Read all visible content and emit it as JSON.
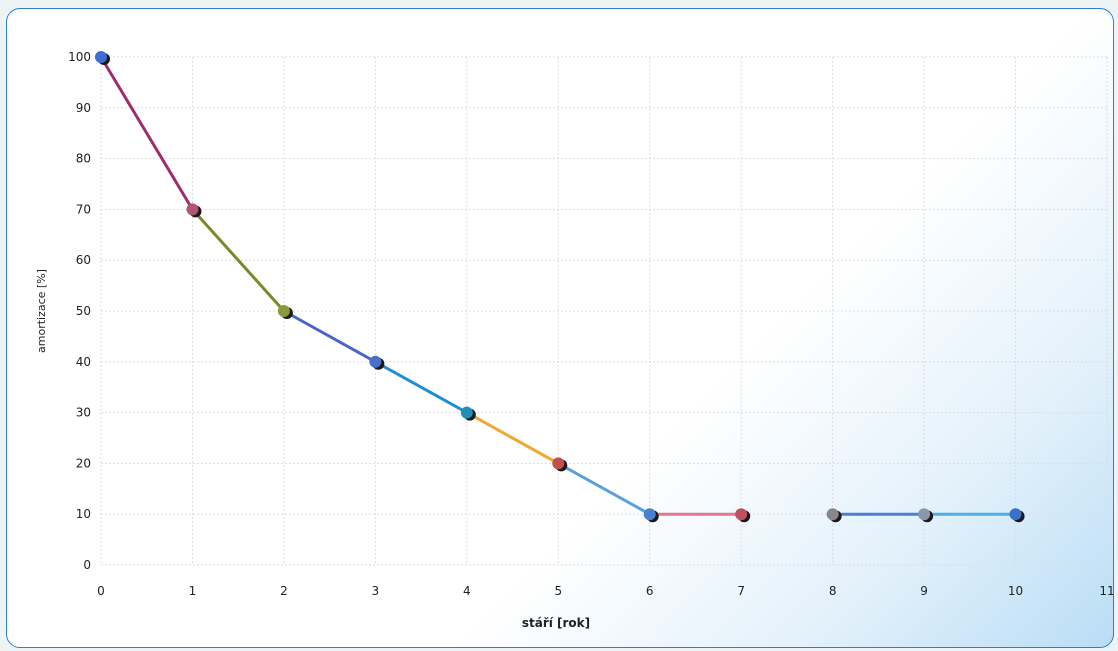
{
  "chart_data": {
    "type": "line",
    "xlabel": "stáří [rok]",
    "ylabel": "amortizace [%]",
    "xlim": [
      0,
      11
    ],
    "ylim": [
      0,
      100
    ],
    "x_ticks": [
      0,
      1,
      2,
      3,
      4,
      5,
      6,
      7,
      8,
      9,
      10,
      11
    ],
    "y_ticks": [
      0,
      10,
      20,
      30,
      40,
      50,
      60,
      70,
      80,
      90,
      100
    ],
    "grid": true,
    "points": [
      {
        "x": 0,
        "y": 100
      },
      {
        "x": 1,
        "y": 70
      },
      {
        "x": 2,
        "y": 50
      },
      {
        "x": 3,
        "y": 40
      },
      {
        "x": 4,
        "y": 30
      },
      {
        "x": 5,
        "y": 20
      },
      {
        "x": 6,
        "y": 10
      },
      {
        "x": 7,
        "y": 10
      },
      {
        "x": 8,
        "y": 10
      },
      {
        "x": 9,
        "y": 10
      },
      {
        "x": 10,
        "y": 10
      }
    ],
    "segments": [
      {
        "from": 0,
        "to": 1,
        "color": "#9b2d6e"
      },
      {
        "from": 1,
        "to": 2,
        "color": "#7a8a2a"
      },
      {
        "from": 2,
        "to": 3,
        "color": "#4a66c8"
      },
      {
        "from": 3,
        "to": 4,
        "color": "#1e8fd6"
      },
      {
        "from": 4,
        "to": 5,
        "color": "#f0a830"
      },
      {
        "from": 5,
        "to": 6,
        "color": "#5aa0e0"
      },
      {
        "from": 6,
        "to": 7,
        "color": "#e07890"
      },
      {
        "from": 8,
        "to": 9,
        "color": "#4a7fd8"
      },
      {
        "from": 9,
        "to": 10,
        "color": "#4ab0e8"
      }
    ],
    "marker_colors": [
      "#3b6fd6",
      "#b0566e",
      "#8a9a3a",
      "#4a6fc8",
      "#1f8fb8",
      "#c05050",
      "#4a80d0",
      "#c05060",
      "#888888",
      "#8899aa",
      "#3a70c8"
    ]
  }
}
